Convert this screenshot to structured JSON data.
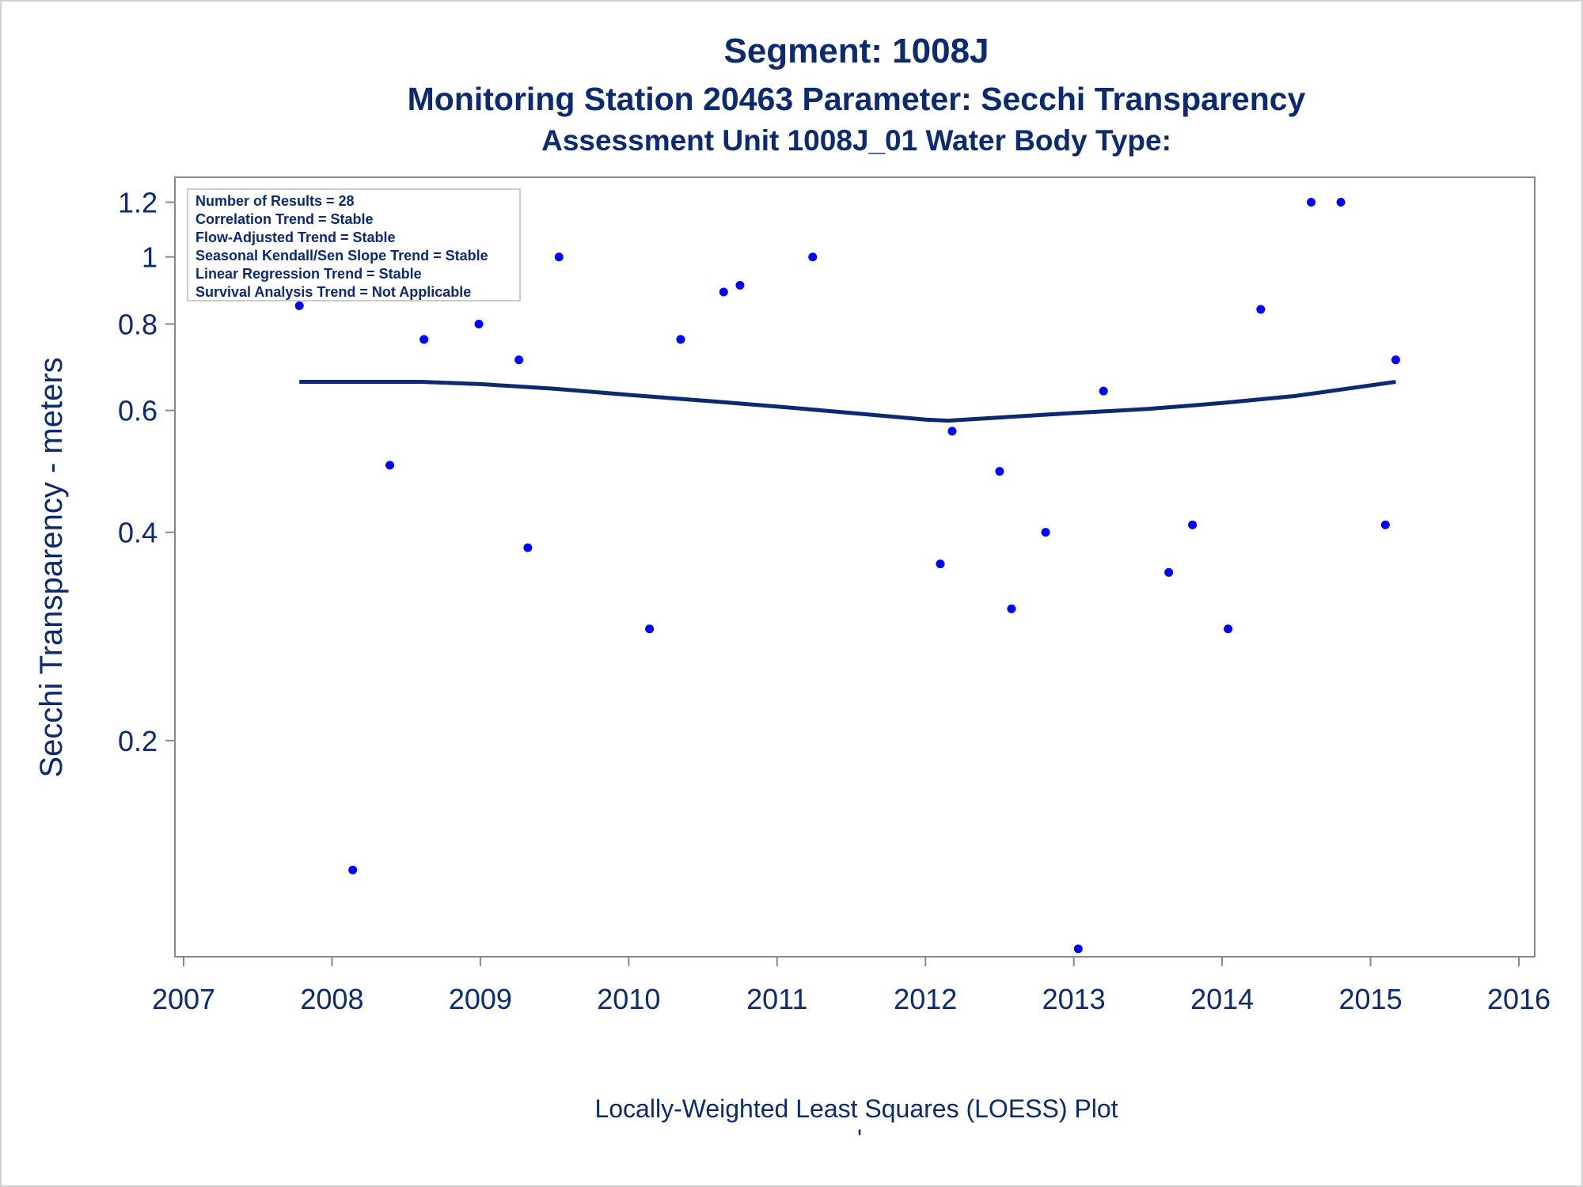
{
  "chart_data": {
    "type": "scatter",
    "title": "Segment: 1008J",
    "subtitle": "Monitoring Station 20463 Parameter: Secchi Transparency",
    "subtitle2": "Assessment Unit 1008J_01   Water Body Type:",
    "xlabel": "",
    "ylabel": "Secchi Transparency - meters",
    "footnote": "Locally-Weighted Least Squares (LOESS) Plot",
    "footnote_mark": "'",
    "x_scale": "linear",
    "y_scale": "log",
    "xlim": [
      2007,
      2016
    ],
    "ylim": [
      0.1,
      1.25
    ],
    "x_ticks": [
      2007,
      2008,
      2009,
      2010,
      2011,
      2012,
      2013,
      2014,
      2015,
      2016
    ],
    "x_tick_labels": [
      "2007",
      "2008",
      "2009",
      "2010",
      "2011",
      "2012",
      "2013",
      "2014",
      "2015",
      "2016"
    ],
    "y_ticks": [
      0.2,
      0.4,
      0.6,
      0.8,
      1.0,
      1.2
    ],
    "y_tick_labels": [
      "0.2",
      "0.4",
      "0.6",
      "0.8",
      "1",
      "1.2"
    ],
    "grid": false,
    "marker_color": "#0000ff",
    "line_color": "#0b2a6f",
    "axis_color": "#888888",
    "text_color": "#0b2a6f",
    "points": [
      {
        "x": 2007.78,
        "y": 0.85
      },
      {
        "x": 2008.14,
        "y": 0.13
      },
      {
        "x": 2008.39,
        "y": 0.5
      },
      {
        "x": 2008.62,
        "y": 0.76
      },
      {
        "x": 2008.99,
        "y": 0.8
      },
      {
        "x": 2009.26,
        "y": 0.71
      },
      {
        "x": 2009.32,
        "y": 0.38
      },
      {
        "x": 2009.53,
        "y": 1.0
      },
      {
        "x": 2010.14,
        "y": 0.29
      },
      {
        "x": 2010.35,
        "y": 0.76
      },
      {
        "x": 2010.64,
        "y": 0.89
      },
      {
        "x": 2010.75,
        "y": 0.91
      },
      {
        "x": 2011.24,
        "y": 1.0
      },
      {
        "x": 2012.1,
        "y": 0.36
      },
      {
        "x": 2012.18,
        "y": 0.56
      },
      {
        "x": 2012.5,
        "y": 0.49
      },
      {
        "x": 2012.58,
        "y": 0.31
      },
      {
        "x": 2012.81,
        "y": 0.4
      },
      {
        "x": 2013.03,
        "y": 0.1
      },
      {
        "x": 2013.2,
        "y": 0.64
      },
      {
        "x": 2013.64,
        "y": 0.35
      },
      {
        "x": 2013.8,
        "y": 0.41
      },
      {
        "x": 2014.04,
        "y": 0.29
      },
      {
        "x": 2014.26,
        "y": 0.84
      },
      {
        "x": 2014.6,
        "y": 1.2
      },
      {
        "x": 2014.8,
        "y": 1.2
      },
      {
        "x": 2015.1,
        "y": 0.41
      },
      {
        "x": 2015.17,
        "y": 0.71
      }
    ],
    "loess_line": [
      {
        "x": 2007.78,
        "y": 0.66
      },
      {
        "x": 2008.2,
        "y": 0.66
      },
      {
        "x": 2008.6,
        "y": 0.66
      },
      {
        "x": 2009.0,
        "y": 0.655
      },
      {
        "x": 2009.5,
        "y": 0.645
      },
      {
        "x": 2010.0,
        "y": 0.632
      },
      {
        "x": 2010.5,
        "y": 0.62
      },
      {
        "x": 2011.0,
        "y": 0.608
      },
      {
        "x": 2011.5,
        "y": 0.595
      },
      {
        "x": 2012.0,
        "y": 0.582
      },
      {
        "x": 2012.15,
        "y": 0.58
      },
      {
        "x": 2012.5,
        "y": 0.586
      },
      {
        "x": 2013.0,
        "y": 0.595
      },
      {
        "x": 2013.5,
        "y": 0.603
      },
      {
        "x": 2014.0,
        "y": 0.615
      },
      {
        "x": 2014.5,
        "y": 0.63
      },
      {
        "x": 2015.17,
        "y": 0.66
      }
    ],
    "inset": {
      "lines": [
        "Number of Results = 28",
        "Correlation Trend = Stable",
        "Flow-Adjusted Trend = Stable",
        "Seasonal Kendall/Sen Slope Trend = Stable",
        "Linear Regression Trend = Stable",
        "Survival Analysis Trend = Not Applicable"
      ],
      "placement": "top-left"
    }
  }
}
